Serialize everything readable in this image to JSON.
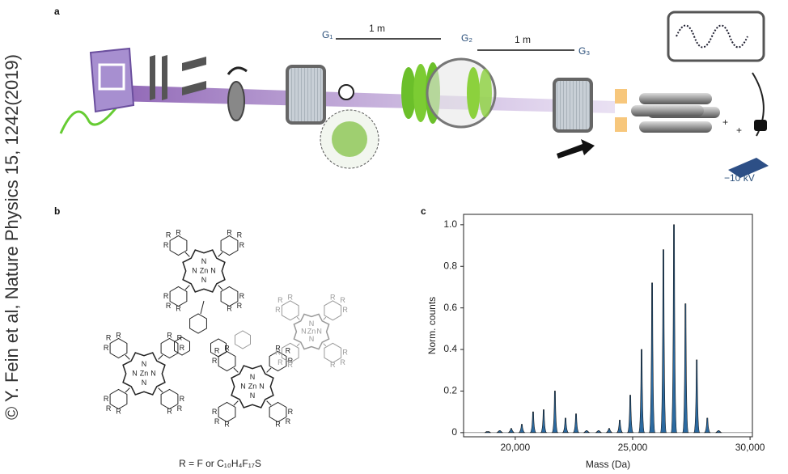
{
  "credit": "© Y. Fein et al, Nature Physics 15, 1242(2019)",
  "panel_a": {
    "label": "a",
    "g1": "G₁",
    "distance_1": "1 m",
    "g2": "G₂",
    "distance_2": "1 m",
    "g3": "G₃",
    "plus_1": "+",
    "plus_2": "+",
    "voltage": "−10 kV"
  },
  "panel_b": {
    "label": "b",
    "substituent": "R",
    "nitrogen": "N",
    "metal": "Zn",
    "caption": "R = F or C₁₀H₄F₁₇S"
  },
  "chart_data": {
    "type": "spectrum",
    "panel_label": "c",
    "x_label": "Mass (Da)",
    "y_label": "Norm. counts",
    "x": [
      18830,
      19340,
      19830,
      20280,
      20760,
      21210,
      21690,
      22140,
      22590,
      23040,
      23550,
      24000,
      24450,
      24900,
      25380,
      25830,
      26310,
      26760,
      27250,
      27730,
      28180,
      28660
    ],
    "values": [
      0.005,
      0.01,
      0.02,
      0.04,
      0.1,
      0.11,
      0.2,
      0.07,
      0.09,
      0.01,
      0.01,
      0.02,
      0.06,
      0.18,
      0.4,
      0.72,
      0.88,
      1.0,
      0.62,
      0.35,
      0.07,
      0.01
    ],
    "color": "#2c6aa0",
    "xlim": [
      17800,
      30100
    ],
    "ylim": [
      -0.02,
      1.05
    ],
    "xticks": [
      {
        "value": 20000,
        "label": "20,000"
      },
      {
        "value": 25000,
        "label": "25,000"
      },
      {
        "value": 30000,
        "label": "30,000"
      }
    ],
    "yticks": [
      0,
      0.2,
      0.4,
      0.6,
      0.8,
      {
        "value": 1,
        "label": "1.0"
      }
    ]
  }
}
